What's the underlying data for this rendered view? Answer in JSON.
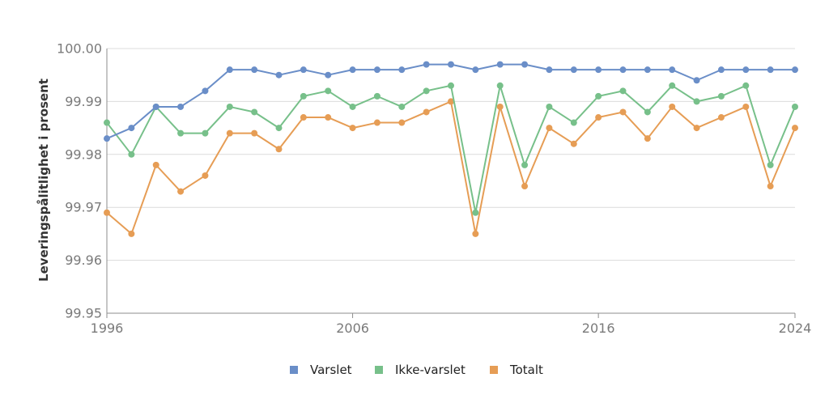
{
  "chart_data": {
    "type": "line",
    "title": "",
    "xlabel": "",
    "ylabel": "Leveringspålitlighet i prosent",
    "xlim": [
      1996,
      2024
    ],
    "ylim": [
      99.95,
      100.0
    ],
    "x_ticks": [
      "1996",
      "2006",
      "2016",
      "2024"
    ],
    "y_ticks": [
      "99.95",
      "99.96",
      "99.97",
      "99.98",
      "99.99",
      "100.00"
    ],
    "grid": "horizontal",
    "legend_position": "bottom",
    "x": [
      1996,
      1997,
      1998,
      1999,
      2000,
      2001,
      2002,
      2003,
      2004,
      2005,
      2006,
      2007,
      2008,
      2009,
      2010,
      2011,
      2012,
      2013,
      2014,
      2015,
      2016,
      2017,
      2018,
      2019,
      2020,
      2021,
      2022,
      2023,
      2024
    ],
    "series": [
      {
        "name": "Varslet",
        "color": "#6a8ec8",
        "values": [
          99.983,
          99.985,
          99.989,
          99.989,
          99.992,
          99.996,
          99.996,
          99.995,
          99.996,
          99.995,
          99.996,
          99.996,
          99.996,
          99.997,
          99.997,
          99.996,
          99.997,
          99.997,
          99.996,
          99.996,
          99.996,
          99.996,
          99.996,
          99.996,
          99.994,
          99.996,
          99.996,
          99.996,
          99.996
        ]
      },
      {
        "name": "Ikke-varslet",
        "color": "#77c08a",
        "values": [
          99.986,
          99.98,
          99.989,
          99.984,
          99.984,
          99.989,
          99.988,
          99.985,
          99.991,
          99.992,
          99.989,
          99.991,
          99.989,
          99.992,
          99.993,
          99.969,
          99.993,
          99.978,
          99.989,
          99.986,
          99.991,
          99.992,
          99.988,
          99.993,
          99.99,
          99.991,
          99.993,
          99.978,
          99.989
        ]
      },
      {
        "name": "Totalt",
        "color": "#e69d55",
        "values": [
          99.969,
          99.965,
          99.978,
          99.973,
          99.976,
          99.984,
          99.984,
          99.981,
          99.987,
          99.987,
          99.985,
          99.986,
          99.986,
          99.988,
          99.99,
          99.965,
          99.989,
          99.974,
          99.985,
          99.982,
          99.987,
          99.988,
          99.983,
          99.989,
          99.985,
          99.987,
          99.989,
          99.974,
          99.985
        ]
      }
    ]
  }
}
